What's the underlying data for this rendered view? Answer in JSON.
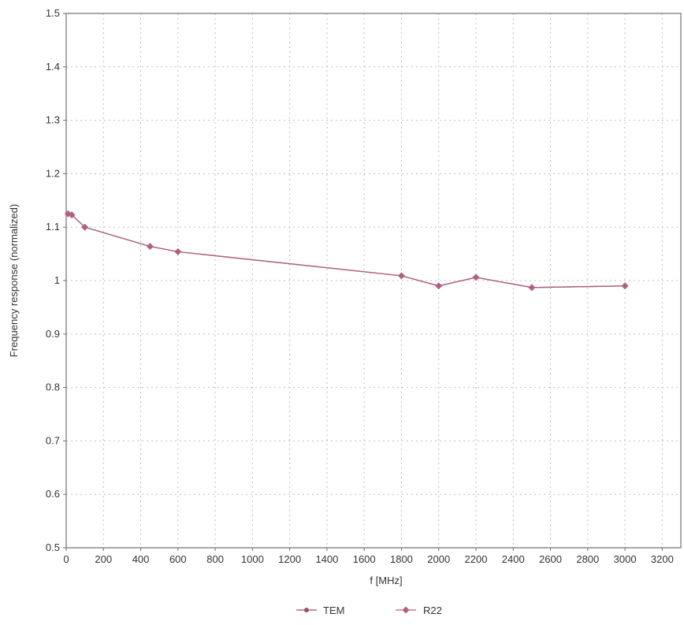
{
  "chart_data": {
    "type": "line",
    "title": "",
    "xlabel": "f [MHz]",
    "ylabel": "Frequency response (normalized)",
    "xlim": [
      0,
      3300
    ],
    "ylim": [
      0.5,
      1.5
    ],
    "xticks": [
      0,
      200,
      400,
      600,
      800,
      1000,
      1200,
      1400,
      1600,
      1800,
      2000,
      2200,
      2400,
      2600,
      2800,
      3000,
      3200
    ],
    "yticks": [
      0.5,
      0.6,
      0.7,
      0.8,
      0.9,
      1,
      1.1,
      1.2,
      1.3,
      1.4,
      1.5
    ],
    "ytick_labels": [
      "0.5",
      "0.6",
      "0.7",
      "0.8",
      "0.9",
      "1",
      "1.1",
      "1.2",
      "1.3",
      "1.4",
      "1.5"
    ],
    "grid": true,
    "legend_position": "bottom",
    "series": [
      {
        "name": "TEM",
        "color": "#a0506a",
        "marker": "dot",
        "x": [
          10,
          30,
          100,
          450,
          600,
          1800,
          2000,
          2200,
          2500,
          3000
        ],
        "y": [
          1.125,
          1.123,
          1.1,
          1.064,
          1.054,
          1.009,
          0.99,
          1.006,
          0.987,
          0.99
        ]
      },
      {
        "name": "R22",
        "color": "#b06080",
        "marker": "diamond",
        "x": [
          10,
          30,
          100,
          450,
          600,
          1800,
          2000,
          2200,
          2500,
          3000
        ],
        "y": [
          1.125,
          1.123,
          1.1,
          1.064,
          1.054,
          1.009,
          0.99,
          1.006,
          0.987,
          0.99
        ]
      }
    ]
  }
}
